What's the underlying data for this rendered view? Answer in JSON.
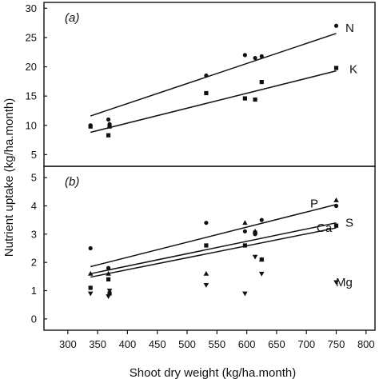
{
  "figure": {
    "ylabel": "Nutrient uptake (kg/ha.month)",
    "xlabel": "Shoot dry weight (kg/ha.month)"
  },
  "colors": {
    "ink": "#111111",
    "background": "#ffffff"
  },
  "chart_data": [
    {
      "type": "scatter",
      "panel_label": "(a)",
      "xlim": [
        260,
        815
      ],
      "ylim": [
        3,
        31
      ],
      "yticks": [
        5,
        10,
        15,
        20,
        25,
        30
      ],
      "grid": false,
      "legend": "end-of-line labels",
      "series": [
        {
          "name": "N",
          "marker": "circle",
          "points": [
            [
              338,
              10.0
            ],
            [
              368,
              11.0
            ],
            [
              370,
              10.2
            ],
            [
              532,
              18.5
            ],
            [
              597,
              22.0
            ],
            [
              614,
              21.5
            ],
            [
              625,
              21.8
            ],
            [
              750,
              27.0
            ]
          ],
          "fit": [
            [
              338,
              11.6
            ],
            [
              750,
              25.7
            ]
          ]
        },
        {
          "name": "K",
          "marker": "square",
          "points": [
            [
              338,
              9.8
            ],
            [
              368,
              8.3
            ],
            [
              370,
              9.8
            ],
            [
              532,
              15.5
            ],
            [
              597,
              14.6
            ],
            [
              614,
              14.4
            ],
            [
              625,
              17.4
            ],
            [
              750,
              19.8
            ]
          ],
          "fit": [
            [
              338,
              8.8
            ],
            [
              750,
              19.3
            ]
          ]
        }
      ]
    },
    {
      "type": "scatter",
      "panel_label": "(b)",
      "xlim": [
        260,
        815
      ],
      "ylim": [
        -0.4,
        5.4
      ],
      "yticks": [
        0,
        1,
        2,
        3,
        4,
        5
      ],
      "grid": false,
      "legend": "end-of-line labels",
      "series": [
        {
          "name": "P",
          "marker": "triangle-up",
          "points": [
            [
              338,
              1.6
            ],
            [
              368,
              1.6
            ],
            [
              532,
              1.6
            ],
            [
              597,
              3.4
            ],
            [
              614,
              3.1
            ],
            [
              625,
              2.1
            ],
            [
              750,
              4.2
            ]
          ],
          "fit": [
            [
              338,
              1.85
            ],
            [
              750,
              4.05
            ]
          ]
        },
        {
          "name": "S",
          "marker": "circle",
          "points": [
            [
              338,
              2.5
            ],
            [
              368,
              1.8
            ],
            [
              532,
              3.4
            ],
            [
              597,
              3.1
            ],
            [
              614,
              3.0
            ],
            [
              625,
              3.5
            ],
            [
              750,
              4.0
            ]
          ],
          "fit": [
            [
              338,
              1.6
            ],
            [
              750,
              3.4
            ]
          ]
        },
        {
          "name": "Ca",
          "marker": "square",
          "points": [
            [
              338,
              1.1
            ],
            [
              368,
              1.4
            ],
            [
              370,
              0.9
            ],
            [
              532,
              2.6
            ],
            [
              597,
              2.6
            ],
            [
              614,
              3.05
            ],
            [
              625,
              2.1
            ],
            [
              750,
              3.3
            ]
          ],
          "fit": [
            [
              338,
              1.48
            ],
            [
              750,
              3.22
            ]
          ]
        },
        {
          "name": "Mg",
          "marker": "triangle-down",
          "points": [
            [
              338,
              0.9
            ],
            [
              368,
              0.8
            ],
            [
              370,
              1.0
            ],
            [
              532,
              1.2
            ],
            [
              597,
              0.9
            ],
            [
              614,
              2.2
            ],
            [
              625,
              1.6
            ],
            [
              750,
              1.3
            ]
          ]
        }
      ]
    }
  ],
  "xticks": [
    300,
    350,
    400,
    450,
    500,
    550,
    600,
    650,
    700,
    750,
    800
  ]
}
